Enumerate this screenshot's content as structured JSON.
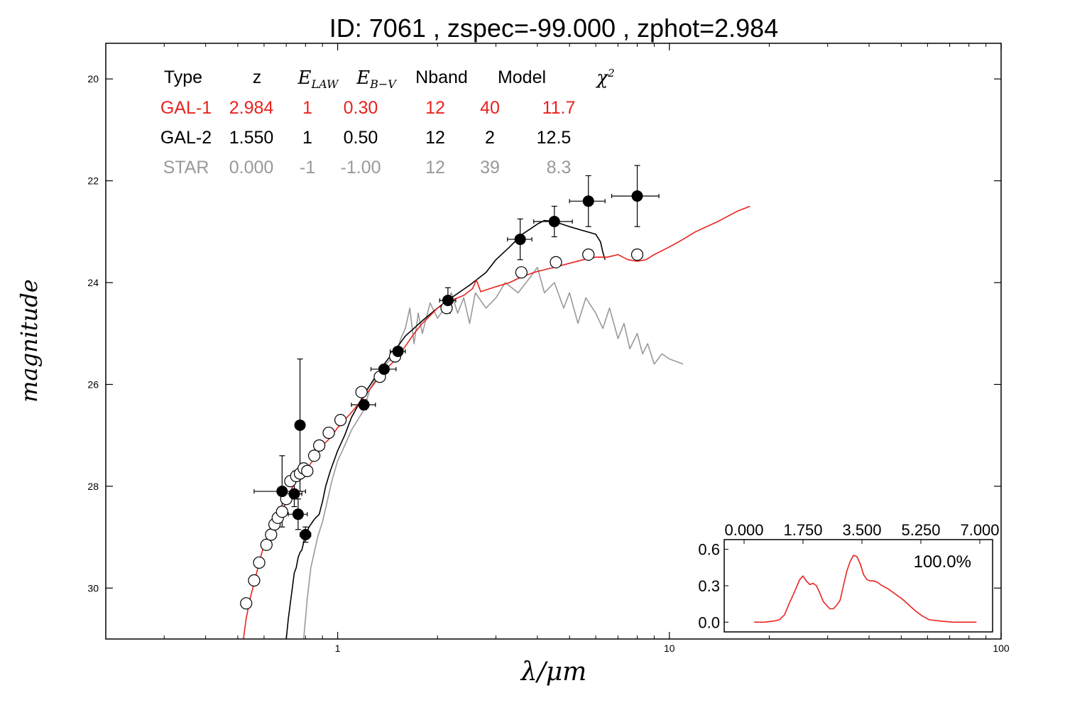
{
  "title": "ID:  7061  , zspec=-99.000 , zphot=2.984",
  "colors": {
    "gal1": "#e8231f",
    "gal2": "#000000",
    "star": "#999999",
    "axis": "#000000",
    "background": "#ffffff"
  },
  "chart_data": [
    {
      "type": "line",
      "panel": "SED",
      "xlabel": "λ/μm",
      "ylabel": "magnitude",
      "xscale": "log",
      "xlim": [
        0.2,
        100
      ],
      "ylim": [
        31.0,
        19.3
      ],
      "y_inverted": true,
      "x_ticks": [
        1,
        10,
        100
      ],
      "x_tick_labels": [
        "1",
        "10",
        "100"
      ],
      "y_ticks": [
        20,
        22,
        24,
        26,
        28,
        30
      ],
      "y_tick_labels": [
        "20",
        "22",
        "24",
        "26",
        "28",
        "30"
      ],
      "grid": false,
      "legend_table": {
        "headers": [
          "Type",
          "z",
          "E_LAW",
          "E_B−V",
          "Nband",
          "Model",
          "χ²"
        ],
        "header_math": [
          false,
          false,
          true,
          true,
          false,
          false,
          true
        ],
        "rows": [
          {
            "key": "gal1",
            "cells": [
              "GAL-1",
              "2.984",
              "1",
              "0.30",
              "12",
              "40",
              "11.7"
            ]
          },
          {
            "key": "gal2",
            "cells": [
              "GAL-2",
              "1.550",
              "1",
              "0.50",
              "12",
              "2",
              "12.5"
            ]
          },
          {
            "key": "star",
            "cells": [
              "STAR",
              "0.000",
              "-1",
              "-1.00",
              "12",
              "39",
              "8.3"
            ]
          }
        ]
      },
      "series": [
        {
          "key": "gal1",
          "x": [
            0.52,
            0.53,
            0.545,
            0.56,
            0.58,
            0.6,
            0.62,
            0.64,
            0.66,
            0.68,
            0.7,
            0.72,
            0.74,
            0.76,
            0.78,
            0.8,
            0.83,
            0.86,
            0.9,
            0.95,
            1.0,
            1.05,
            1.1,
            1.15,
            1.2,
            1.3,
            1.4,
            1.5,
            1.6,
            1.7,
            1.8,
            1.9,
            2.0,
            2.1,
            2.2,
            2.4,
            2.55,
            2.62,
            2.7,
            3.0,
            3.3,
            3.6,
            4.0,
            4.5,
            5.0,
            5.5,
            6.0,
            6.5,
            7.0,
            7.5,
            8.0,
            8.5,
            9.0,
            10.0,
            11.0,
            12.0,
            14.0,
            16.0,
            17.5
          ],
          "y": [
            31.0,
            30.6,
            30.2,
            29.9,
            29.5,
            29.15,
            28.95,
            28.75,
            28.6,
            28.5,
            28.3,
            28.1,
            27.95,
            27.85,
            27.8,
            27.7,
            27.55,
            27.4,
            27.2,
            27.05,
            26.85,
            26.7,
            26.55,
            26.4,
            26.25,
            25.95,
            25.7,
            25.5,
            25.25,
            25.0,
            24.8,
            24.65,
            24.5,
            24.42,
            24.35,
            24.25,
            24.12,
            23.95,
            24.18,
            24.08,
            24.0,
            23.88,
            23.78,
            23.7,
            23.62,
            23.55,
            23.5,
            23.5,
            23.45,
            23.55,
            23.58,
            23.55,
            23.45,
            23.3,
            23.15,
            23.0,
            22.8,
            22.6,
            22.5
          ]
        },
        {
          "key": "gal2",
          "x": [
            0.7,
            0.71,
            0.72,
            0.73,
            0.74,
            0.75,
            0.76,
            0.77,
            0.78,
            0.79,
            0.8,
            0.82,
            0.85,
            0.88,
            0.9,
            0.92,
            0.95,
            1.0,
            1.05,
            1.1,
            1.2,
            1.3,
            1.4,
            1.5,
            1.6,
            1.8,
            2.0,
            2.2,
            2.5,
            2.8,
            3.0,
            3.3,
            3.6,
            3.8,
            4.0,
            4.2,
            4.5,
            5.0,
            5.5,
            6.0,
            6.2,
            6.3,
            6.4
          ],
          "y": [
            31.0,
            30.6,
            30.3,
            30.0,
            29.7,
            29.6,
            29.4,
            29.3,
            29.25,
            29.1,
            28.95,
            28.8,
            28.65,
            28.55,
            28.3,
            28.0,
            27.7,
            27.3,
            27.0,
            26.65,
            26.2,
            25.85,
            25.55,
            25.3,
            25.05,
            24.75,
            24.5,
            24.3,
            24.05,
            23.8,
            23.55,
            23.3,
            23.05,
            22.95,
            22.85,
            22.78,
            22.8,
            22.9,
            22.98,
            23.05,
            23.2,
            23.4,
            23.55
          ]
        },
        {
          "key": "star",
          "x": [
            0.79,
            0.8,
            0.81,
            0.82,
            0.83,
            0.85,
            0.87,
            0.9,
            0.93,
            0.96,
            1.0,
            1.05,
            1.1,
            1.2,
            1.25,
            1.3,
            1.4,
            1.5,
            1.55,
            1.6,
            1.65,
            1.7,
            1.75,
            1.8,
            1.85,
            1.9,
            2.0,
            2.1,
            2.2,
            2.3,
            2.4,
            2.5,
            2.6,
            2.8,
            3.0,
            3.2,
            3.5,
            3.8,
            4.0,
            4.2,
            4.5,
            4.8,
            5.0,
            5.3,
            5.6,
            6.0,
            6.3,
            6.6,
            7.0,
            7.3,
            7.6,
            8.0,
            8.3,
            8.6,
            9.0,
            9.5,
            10.0,
            10.5,
            11.0
          ],
          "y": [
            31.0,
            30.6,
            30.2,
            29.9,
            29.6,
            29.3,
            29.0,
            28.7,
            28.3,
            27.9,
            27.5,
            27.2,
            26.9,
            26.5,
            26.1,
            25.9,
            25.6,
            25.4,
            25.1,
            24.9,
            24.5,
            25.2,
            24.6,
            25.0,
            24.7,
            24.4,
            24.7,
            24.5,
            24.2,
            24.6,
            24.3,
            24.8,
            24.2,
            24.5,
            24.3,
            24.0,
            24.2,
            23.9,
            23.7,
            24.2,
            24.0,
            24.5,
            24.2,
            24.8,
            24.3,
            24.6,
            24.9,
            24.5,
            25.1,
            24.8,
            25.3,
            25.0,
            25.4,
            25.2,
            25.6,
            25.4,
            25.5,
            25.55,
            25.6
          ]
        }
      ],
      "observed_points": {
        "x": [
          0.68,
          0.74,
          0.76,
          0.77,
          0.8,
          1.2,
          1.38,
          1.52,
          2.15,
          3.55,
          4.5,
          5.7,
          8.0
        ],
        "y": [
          28.1,
          28.15,
          28.55,
          26.8,
          28.95,
          26.4,
          25.7,
          25.35,
          24.35,
          23.15,
          22.8,
          22.4,
          22.3
        ],
        "x_err_lo": [
          0.12,
          0.04,
          0.05,
          0.02,
          0.03,
          0.1,
          0.12,
          0.08,
          0.12,
          0.3,
          0.6,
          0.7,
          1.3
        ],
        "x_err_hi": [
          0.12,
          0.04,
          0.05,
          0.02,
          0.03,
          0.1,
          0.12,
          0.08,
          0.12,
          0.3,
          0.6,
          0.7,
          1.3
        ],
        "y_err": [
          0.7,
          0.25,
          0.3,
          1.3,
          0.15,
          0.1,
          0.08,
          0.07,
          0.25,
          0.4,
          0.3,
          0.5,
          0.6
        ]
      },
      "model_points": {
        "x": [
          0.53,
          0.56,
          0.58,
          0.61,
          0.63,
          0.645,
          0.66,
          0.68,
          0.7,
          0.72,
          0.75,
          0.77,
          0.79,
          0.81,
          0.85,
          0.88,
          0.94,
          1.02,
          1.18,
          1.34,
          1.49,
          2.13,
          3.58,
          4.55,
          5.7,
          8.0
        ],
        "y": [
          30.3,
          29.85,
          29.5,
          29.15,
          28.95,
          28.75,
          28.62,
          28.5,
          28.25,
          27.9,
          27.8,
          27.75,
          27.65,
          27.7,
          27.4,
          27.2,
          26.95,
          26.7,
          26.15,
          25.85,
          25.45,
          24.5,
          23.8,
          23.6,
          23.45,
          23.45
        ]
      }
    },
    {
      "type": "line",
      "panel": "inset-pdz",
      "xlim": [
        0.0,
        7.0
      ],
      "ylim": [
        -0.08,
        0.68
      ],
      "x_ticks": [
        0.0,
        1.75,
        3.5,
        5.25,
        7.0
      ],
      "x_tick_labels": [
        "0.000",
        "1.750",
        "3.500",
        "5.250",
        "7.000"
      ],
      "y_ticks": [
        0.0,
        0.3,
        0.6
      ],
      "y_tick_labels": [
        "0.0",
        "0.3",
        "0.6"
      ],
      "annotation": "100.0%",
      "series": [
        {
          "key": "gal1",
          "x": [
            0.3,
            0.6,
            0.9,
            1.05,
            1.2,
            1.35,
            1.5,
            1.65,
            1.75,
            1.85,
            1.95,
            2.05,
            2.15,
            2.25,
            2.35,
            2.45,
            2.55,
            2.65,
            2.75,
            2.85,
            2.95,
            3.05,
            3.15,
            3.25,
            3.35,
            3.45,
            3.55,
            3.65,
            3.75,
            3.85,
            3.95,
            4.1,
            4.3,
            4.5,
            4.7,
            4.9,
            5.1,
            5.3,
            5.5,
            5.8,
            6.2,
            6.6,
            6.9
          ],
          "y": [
            0.0,
            0.0,
            0.01,
            0.02,
            0.06,
            0.16,
            0.25,
            0.35,
            0.38,
            0.34,
            0.31,
            0.32,
            0.3,
            0.24,
            0.17,
            0.14,
            0.11,
            0.11,
            0.14,
            0.18,
            0.3,
            0.42,
            0.5,
            0.55,
            0.54,
            0.48,
            0.39,
            0.35,
            0.34,
            0.34,
            0.33,
            0.3,
            0.27,
            0.23,
            0.19,
            0.14,
            0.09,
            0.05,
            0.02,
            0.01,
            0.0,
            0.0,
            0.0
          ]
        }
      ]
    }
  ]
}
